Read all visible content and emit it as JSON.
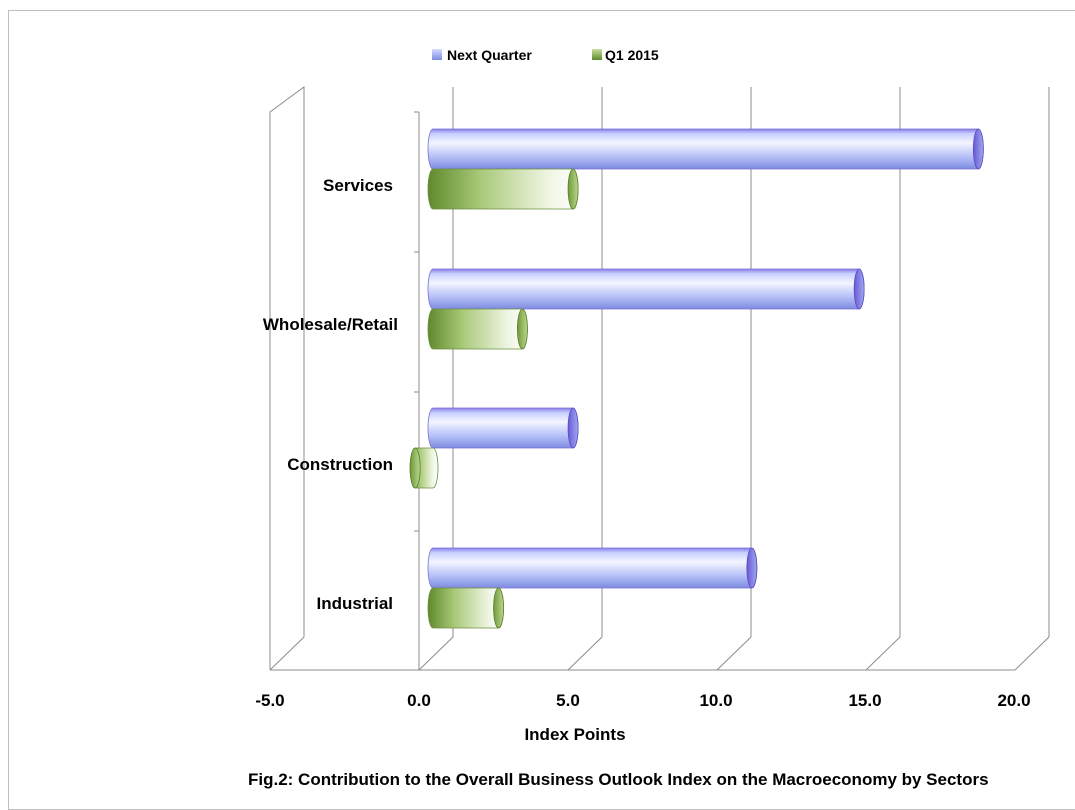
{
  "chart_data": {
    "type": "bar",
    "orientation": "horizontal",
    "title": "Fig.2: Contribution to the Overall Business Outlook Index on the Macroeconomy by Sectors",
    "xlabel": "Index Points",
    "ylabel": "",
    "xlim": [
      -5.0,
      20.0
    ],
    "ticks": [
      "-5.0",
      "0.0",
      "5.0",
      "10.0",
      "15.0",
      "20.0"
    ],
    "categories": [
      "Services",
      "Wholesale/Retail",
      "Construction",
      "Industrial"
    ],
    "series": [
      {
        "name": "Next Quarter",
        "values": [
          18.3,
          14.3,
          4.7,
          10.7
        ],
        "color": "#a9b4f4"
      },
      {
        "name": "Q1 2015",
        "values": [
          4.7,
          3.0,
          -0.6,
          2.2
        ],
        "color": "#8fb35c"
      }
    ],
    "legend_position": "top",
    "grid": true
  }
}
